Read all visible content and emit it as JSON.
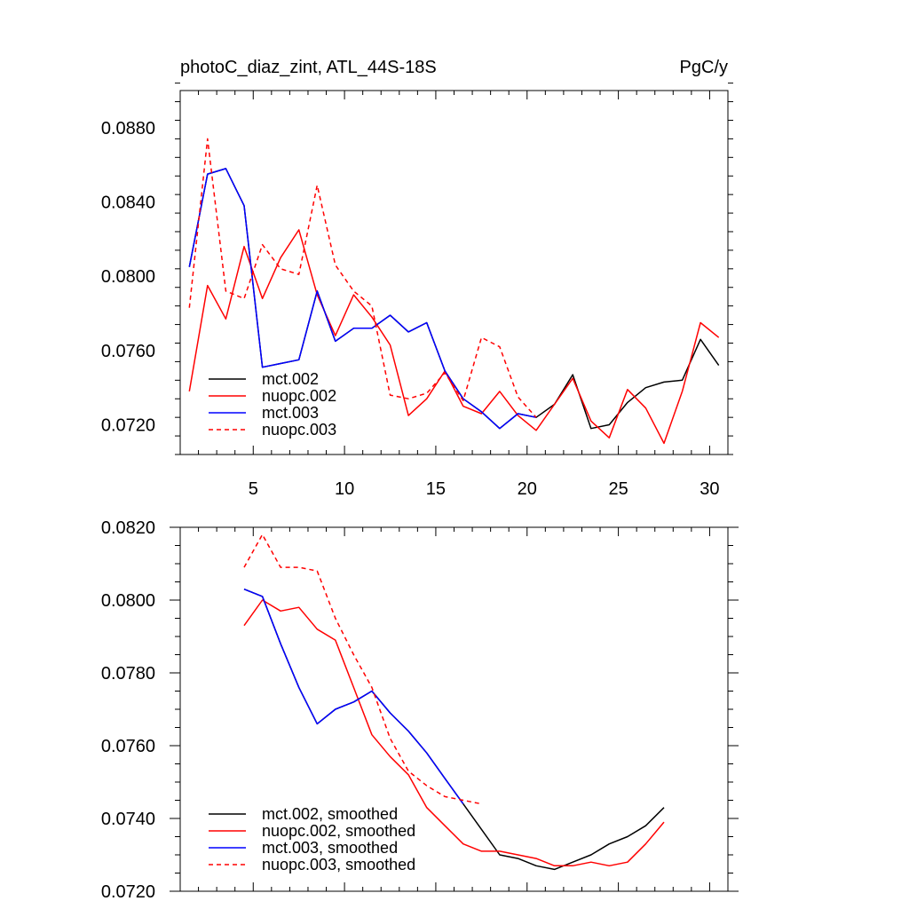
{
  "chart_data": [
    {
      "type": "line",
      "title_left": "photoC_diaz_zint, ATL_44S-18S",
      "title_right": "PgC/y",
      "xlabel": "",
      "ylabel": "",
      "xlim": [
        1,
        31
      ],
      "ylim": [
        0.0704,
        0.09
      ],
      "x_ticks": [
        5,
        10,
        15,
        20,
        25,
        30
      ],
      "x_tick_labels": [
        "5",
        "10",
        "15",
        "20",
        "25",
        "30"
      ],
      "y_ticks": [
        0.072,
        0.076,
        0.08,
        0.084,
        0.088
      ],
      "y_tick_labels": [
        "0.0720",
        "0.0760",
        "0.0800",
        "0.0840",
        "0.0880"
      ],
      "legend_position": "bottom-left",
      "series": [
        {
          "name": "mct.002",
          "color": "#000000",
          "dash": false,
          "x": [
            1.5,
            2.5,
            3.5,
            4.5,
            5.5,
            6.5,
            7.5,
            8.5,
            9.5,
            10.5,
            11.5,
            12.5,
            13.5,
            14.5,
            15.5,
            16.5,
            17.5,
            18.5,
            19.5,
            20.5,
            21.5,
            22.5,
            23.5,
            24.5,
            25.5,
            26.5,
            27.5,
            28.5,
            29.5,
            30.5
          ],
          "values": [
            0.0805,
            0.0855,
            0.0858,
            0.0838,
            0.0751,
            0.0753,
            0.0755,
            0.0792,
            0.0765,
            0.0772,
            0.0772,
            0.0779,
            0.077,
            0.0775,
            0.0749,
            0.0734,
            0.0727,
            0.0718,
            0.0726,
            0.0724,
            0.0731,
            0.0747,
            0.0718,
            0.072,
            0.0732,
            0.074,
            0.0743,
            0.0744,
            0.0766,
            0.0752
          ]
        },
        {
          "name": "nuopc.002",
          "color": "#ff0000",
          "dash": false,
          "x": [
            1.5,
            2.5,
            3.5,
            4.5,
            5.5,
            6.5,
            7.5,
            8.5,
            9.5,
            10.5,
            11.5,
            12.5,
            13.5,
            14.5,
            15.5,
            16.5,
            17.5,
            18.5,
            19.5,
            20.5,
            21.5,
            22.5,
            23.5,
            24.5,
            25.5,
            26.5,
            27.5,
            28.5,
            29.5,
            30.5
          ],
          "values": [
            0.0738,
            0.0795,
            0.0777,
            0.0816,
            0.0788,
            0.081,
            0.0825,
            0.079,
            0.0768,
            0.079,
            0.0778,
            0.0763,
            0.0725,
            0.0734,
            0.0749,
            0.073,
            0.0726,
            0.0738,
            0.0725,
            0.0717,
            0.0731,
            0.0745,
            0.0722,
            0.0713,
            0.0739,
            0.0729,
            0.071,
            0.0738,
            0.0775,
            0.0767
          ]
        },
        {
          "name": "mct.003",
          "color": "#0000ff",
          "dash": false,
          "x": [
            1.5,
            2.5,
            3.5,
            4.5,
            5.5,
            6.5,
            7.5,
            8.5,
            9.5,
            10.5,
            11.5,
            12.5,
            13.5,
            14.5,
            15.5,
            16.5,
            17.5,
            18.5,
            19.5,
            20.5
          ],
          "values": [
            0.0805,
            0.0855,
            0.0858,
            0.0838,
            0.0751,
            0.0753,
            0.0755,
            0.0792,
            0.0765,
            0.0772,
            0.0772,
            0.0779,
            0.077,
            0.0775,
            0.0749,
            0.0734,
            0.0727,
            0.0718,
            0.0726,
            0.0724
          ]
        },
        {
          "name": "nuopc.003",
          "color": "#ff0000",
          "dash": true,
          "x": [
            1.5,
            2.5,
            3.5,
            4.5,
            5.5,
            6.5,
            7.5,
            8.5,
            9.5,
            10.5,
            11.5,
            12.5,
            13.5,
            14.5,
            15.5,
            16.5,
            17.5,
            18.5,
            19.5,
            20.5
          ],
          "values": [
            0.0783,
            0.0874,
            0.0792,
            0.0788,
            0.0817,
            0.0804,
            0.0801,
            0.0849,
            0.0806,
            0.0792,
            0.0784,
            0.0736,
            0.0734,
            0.0737,
            0.0748,
            0.0733,
            0.0767,
            0.0762,
            0.0735,
            0.0724
          ]
        }
      ]
    },
    {
      "type": "line",
      "xlabel": "",
      "ylabel": "",
      "xlim": [
        1,
        31
      ],
      "ylim": [
        0.072,
        0.082
      ],
      "x_ticks": [
        5,
        10,
        15,
        20,
        25,
        30
      ],
      "y_ticks": [
        0.072,
        0.074,
        0.076,
        0.078,
        0.08,
        0.082
      ],
      "y_tick_labels": [
        "0.0720",
        "0.0740",
        "0.0760",
        "0.0780",
        "0.0800",
        "0.0820"
      ],
      "legend_position": "bottom-left",
      "series": [
        {
          "name": "mct.002, smoothed",
          "color": "#000000",
          "dash": false,
          "x": [
            4.5,
            5.5,
            6.5,
            7.5,
            8.5,
            9.5,
            10.5,
            11.5,
            12.5,
            13.5,
            14.5,
            15.5,
            16.5,
            17.5,
            18.5,
            19.5,
            20.5,
            21.5,
            22.5,
            23.5,
            24.5,
            25.5,
            26.5,
            27.5
          ],
          "values": [
            0.0803,
            0.0801,
            0.0788,
            0.0776,
            0.0766,
            0.077,
            0.0772,
            0.0775,
            0.0769,
            0.0764,
            0.0758,
            0.0751,
            0.0744,
            0.0737,
            0.073,
            0.0729,
            0.0727,
            0.0726,
            0.0728,
            0.073,
            0.0733,
            0.0735,
            0.0738,
            0.0743
          ]
        },
        {
          "name": "nuopc.002, smoothed",
          "color": "#ff0000",
          "dash": false,
          "x": [
            4.5,
            5.5,
            6.5,
            7.5,
            8.5,
            9.5,
            10.5,
            11.5,
            12.5,
            13.5,
            14.5,
            15.5,
            16.5,
            17.5,
            18.5,
            19.5,
            20.5,
            21.5,
            22.5,
            23.5,
            24.5,
            25.5,
            26.5,
            27.5
          ],
          "values": [
            0.0793,
            0.08,
            0.0797,
            0.0798,
            0.0792,
            0.0789,
            0.0776,
            0.0763,
            0.0757,
            0.0752,
            0.0743,
            0.0738,
            0.0733,
            0.0731,
            0.0731,
            0.073,
            0.0729,
            0.0727,
            0.0727,
            0.0728,
            0.0727,
            0.0728,
            0.0733,
            0.0739
          ]
        },
        {
          "name": "mct.003, smoothed",
          "color": "#0000ff",
          "dash": false,
          "x": [
            4.5,
            5.5,
            6.5,
            7.5,
            8.5,
            9.5,
            10.5,
            11.5,
            12.5,
            13.5,
            14.5,
            15.5,
            16.5
          ],
          "values": [
            0.0803,
            0.0801,
            0.0788,
            0.0776,
            0.0766,
            0.077,
            0.0772,
            0.0775,
            0.0769,
            0.0764,
            0.0758,
            0.0751,
            0.0744
          ]
        },
        {
          "name": "nuopc.003, smoothed",
          "color": "#ff0000",
          "dash": true,
          "x": [
            4.5,
            5.5,
            6.5,
            7.5,
            8.5,
            9.5,
            10.5,
            11.5,
            12.5,
            13.5,
            14.5,
            15.5,
            16.5,
            17.5
          ],
          "values": [
            0.0809,
            0.0818,
            0.0809,
            0.0809,
            0.0808,
            0.0795,
            0.0785,
            0.0776,
            0.0762,
            0.0753,
            0.0749,
            0.0746,
            0.0745,
            0.0744
          ]
        }
      ]
    }
  ]
}
